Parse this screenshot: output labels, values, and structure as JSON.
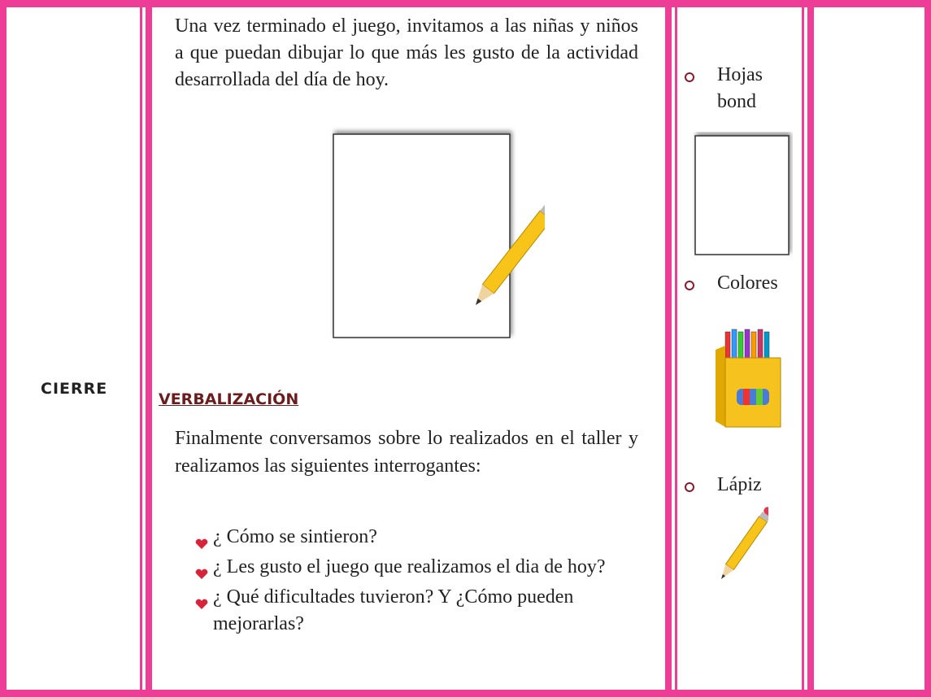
{
  "stage": "CIERRE",
  "activity": {
    "intro": "Una vez terminado el juego, invitamos a las niñas y niños a que puedan dibujar lo que más les gusto de la actividad desarrollada del día de hoy.",
    "heading": "VERBALIZACIÓN",
    "paragraph": "Finalmente conversamos sobre lo realizados en el taller y realizamos las siguientes interrogantes:",
    "questions": [
      "¿ Cómo se sintieron?",
      "¿ Les gusto el juego que realizamos el dia de hoy?",
      "¿ Qué dificultades tuvieron? Y ¿Cómo pueden mejorarlas?"
    ]
  },
  "materials": [
    "Hojas bond",
    "Colores",
    "Lápiz"
  ]
}
